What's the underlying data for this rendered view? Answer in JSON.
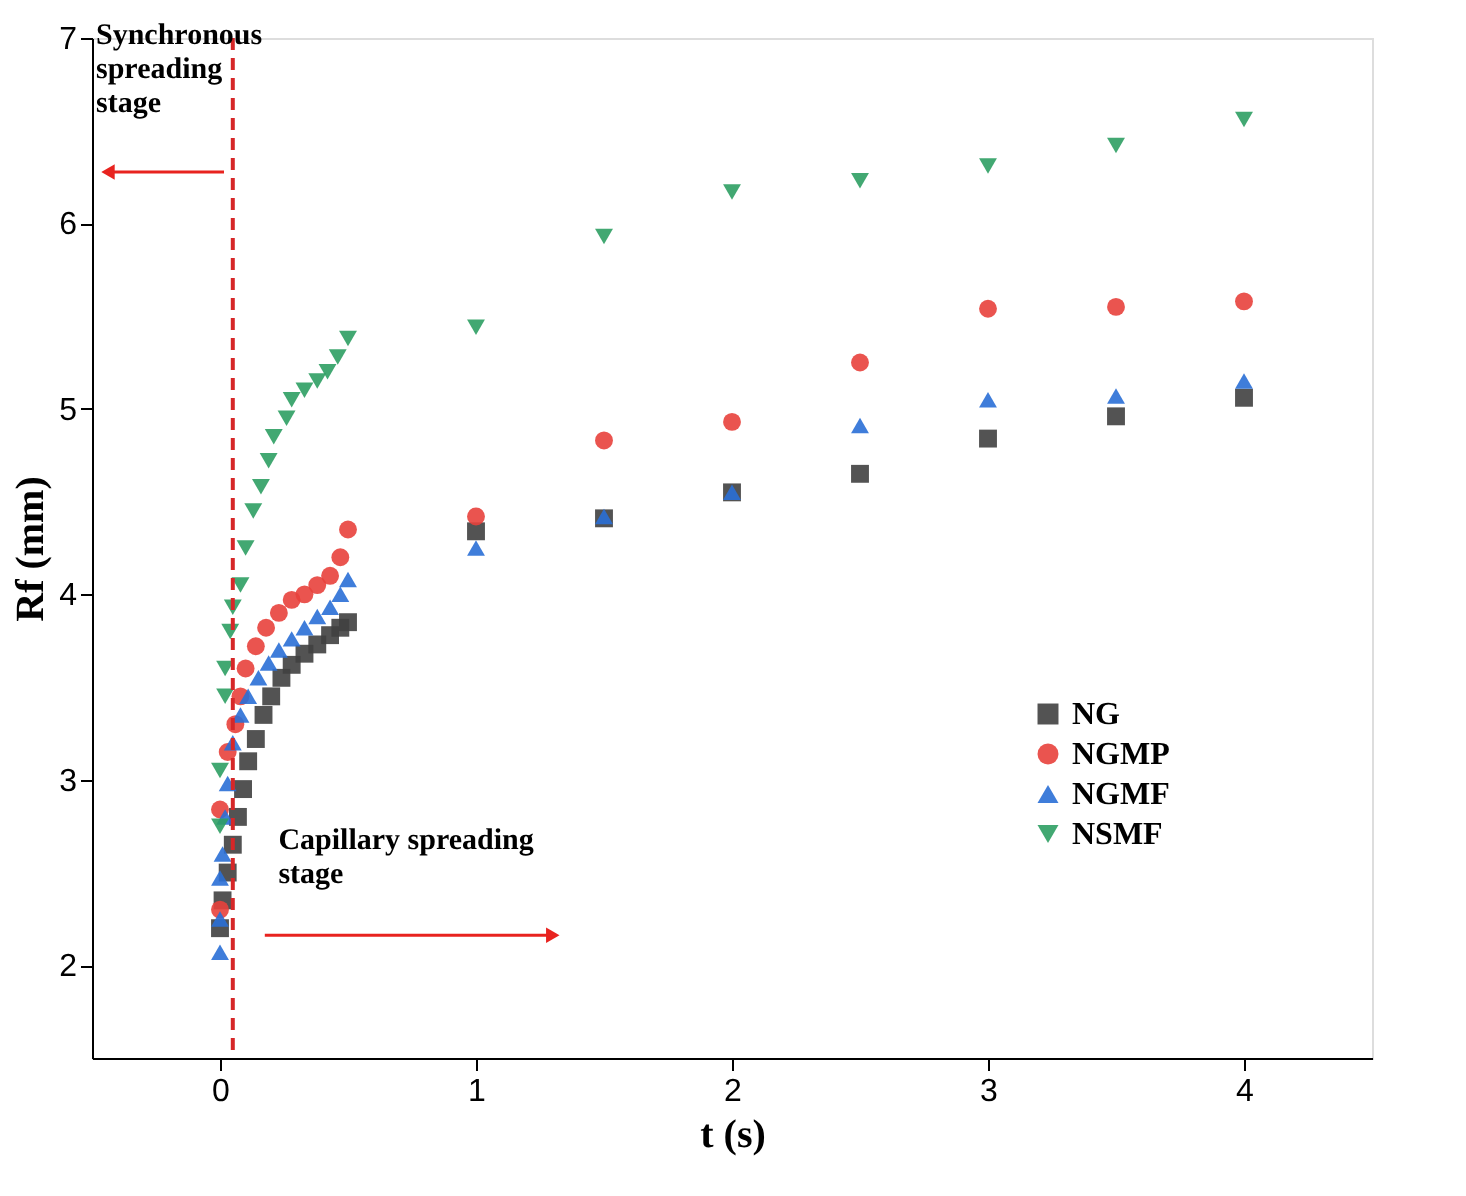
{
  "chart_data": {
    "type": "scatter",
    "xlabel": "t (s)",
    "ylabel": "Rf (mm)",
    "xlim": [
      -0.5,
      4.5
    ],
    "xticks": [
      0,
      1,
      2,
      3,
      4
    ],
    "ylim": [
      1.5,
      7
    ],
    "yticks": [
      2,
      3,
      4,
      5,
      6,
      7
    ],
    "grid": false,
    "legend": "bottom right",
    "series": [
      {
        "name": "NG",
        "color": "#404040",
        "marker": "square",
        "x": [
          0,
          0.01,
          0.03,
          0.05,
          0.07,
          0.09,
          0.11,
          0.14,
          0.17,
          0.2,
          0.24,
          0.28,
          0.33,
          0.38,
          0.43,
          0.47,
          0.5,
          1,
          1.5,
          2,
          2.5,
          3,
          3.5,
          4
        ],
        "values": [
          2.2,
          2.35,
          2.5,
          2.65,
          2.8,
          2.95,
          3.1,
          3.22,
          3.35,
          3.45,
          3.55,
          3.62,
          3.68,
          3.73,
          3.78,
          3.82,
          3.85,
          4.34,
          4.41,
          4.55,
          4.65,
          4.84,
          4.96,
          5.06
        ]
      },
      {
        "name": "NGMP",
        "color": "#e8413c",
        "marker": "circle",
        "x": [
          0,
          0,
          0.03,
          0.06,
          0.08,
          0.1,
          0.14,
          0.18,
          0.23,
          0.28,
          0.33,
          0.38,
          0.43,
          0.47,
          0.5,
          1,
          1.5,
          2,
          2.5,
          3,
          3.5,
          4
        ],
        "values": [
          2.3,
          2.84,
          3.15,
          3.3,
          3.45,
          3.6,
          3.72,
          3.82,
          3.9,
          3.97,
          4.0,
          4.05,
          4.1,
          4.2,
          4.35,
          4.42,
          4.83,
          4.93,
          5.25,
          5.54,
          5.55,
          5.58
        ]
      },
      {
        "name": "NGMF",
        "color": "#2a6fd6",
        "marker": "triangle",
        "x": [
          0,
          0,
          0,
          0.01,
          0.02,
          0.03,
          0.05,
          0.08,
          0.11,
          0.15,
          0.19,
          0.23,
          0.28,
          0.33,
          0.38,
          0.43,
          0.47,
          0.5,
          1,
          1.5,
          2,
          2.5,
          3,
          3.5,
          4
        ],
        "values": [
          2.07,
          2.25,
          2.47,
          2.6,
          2.8,
          2.98,
          3.2,
          3.35,
          3.45,
          3.55,
          3.63,
          3.7,
          3.76,
          3.82,
          3.88,
          3.93,
          4.0,
          4.08,
          4.25,
          4.42,
          4.55,
          4.91,
          5.05,
          5.07,
          5.15
        ]
      },
      {
        "name": "NSMF",
        "color": "#2e9e63",
        "marker": "triangle-down",
        "x": [
          0,
          0,
          0.02,
          0.02,
          0.04,
          0.05,
          0.08,
          0.1,
          0.13,
          0.16,
          0.19,
          0.21,
          0.26,
          0.28,
          0.33,
          0.38,
          0.42,
          0.46,
          0.5,
          1,
          1.5,
          2,
          2.5,
          3,
          3.5,
          4
        ],
        "values": [
          2.75,
          3.05,
          3.45,
          3.6,
          3.8,
          3.93,
          4.05,
          4.25,
          4.45,
          4.58,
          4.72,
          4.85,
          4.95,
          5.05,
          5.1,
          5.15,
          5.2,
          5.28,
          5.38,
          5.44,
          5.93,
          6.17,
          6.23,
          6.31,
          6.42,
          6.56
        ]
      }
    ],
    "ref_lines": [
      {
        "axis": "x",
        "value": 0.05,
        "color": "#d62728",
        "line_style": "dashed"
      }
    ],
    "annotations": [
      "Synchronous\nspreading\nstage",
      "Capillary spreading\nstage"
    ]
  }
}
